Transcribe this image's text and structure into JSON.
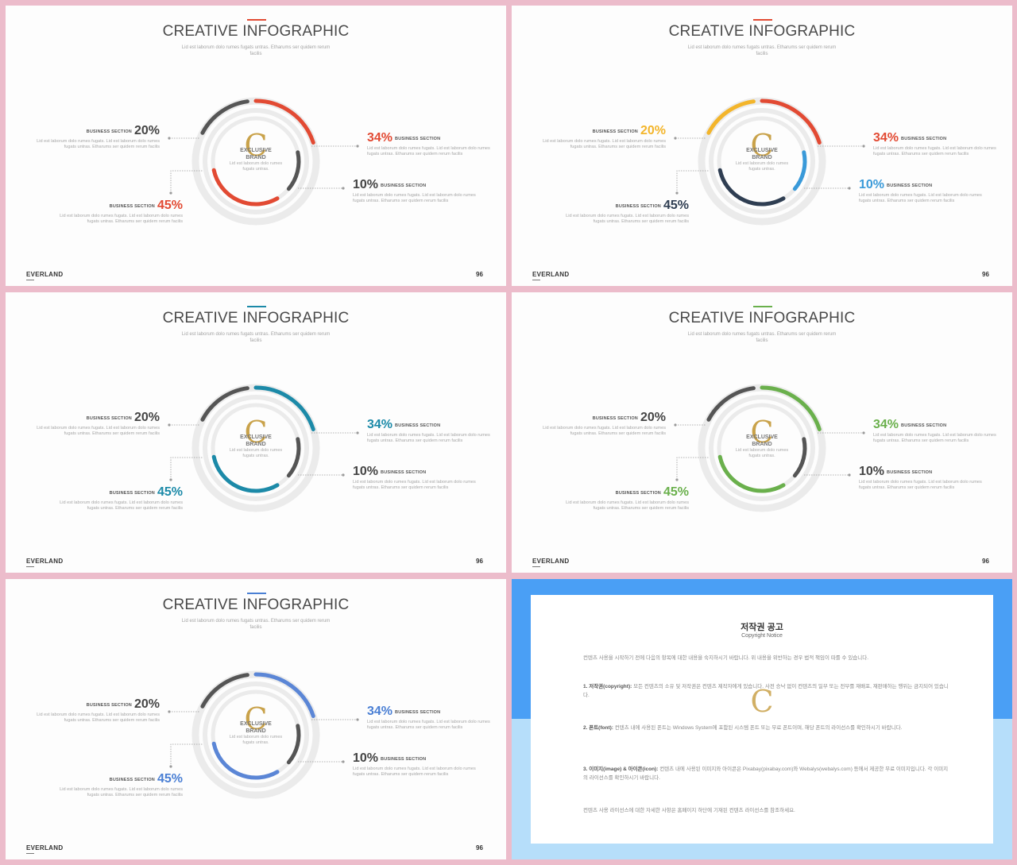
{
  "slide_common": {
    "title": "CREATIVE INFOGRAPHIC",
    "subtitle": "Lid est laborum dolo rumes fugats untras. Etharums ser quidem rerum facilis",
    "brand": "EVERLAND",
    "page_number": "96",
    "center_text": "Lid est laborum dolo rumes fugats untras.",
    "logo_letter": "C",
    "logo_text": "EXCLUSIVE BRAND",
    "section_label": "BUSINESS SECTION",
    "description": "Lid est laborum dolo rumes fugats. Lid est laborum dolo rumes fugats untras. Etharums ser quidem rerum facilis",
    "segments": [
      {
        "percent": "20%",
        "position": "left-top"
      },
      {
        "percent": "34%",
        "position": "right-top"
      },
      {
        "percent": "45%",
        "position": "left-bottom"
      },
      {
        "percent": "10%",
        "position": "right-bottom"
      }
    ]
  },
  "slides": [
    {
      "accent": "#e24a33",
      "outer_top_left": "#555555",
      "outer_top_right": "#e24a33",
      "inner_right": "#555555",
      "inner_bottom": "#e24a33",
      "pct_colors": {
        "20%": "#444444",
        "34%": "#e24a33",
        "45%": "#e24a33",
        "10%": "#444444"
      }
    },
    {
      "accent": "#e24a33",
      "outer_top_left": "#f3b52b",
      "outer_top_right": "#e24a33",
      "inner_right": "#3a9ad9",
      "inner_bottom": "#2f3e52",
      "pct_colors": {
        "20%": "#f3b52b",
        "34%": "#e24a33",
        "45%": "#2f3e52",
        "10%": "#3a9ad9"
      }
    },
    {
      "accent": "#1c8aa8",
      "outer_top_left": "#555555",
      "outer_top_right": "#1c8aa8",
      "inner_right": "#555555",
      "inner_bottom": "#1c8aa8",
      "pct_colors": {
        "20%": "#444444",
        "34%": "#1c8aa8",
        "45%": "#1c8aa8",
        "10%": "#444444"
      }
    },
    {
      "accent": "#6ab04c",
      "outer_top_left": "#555555",
      "outer_top_right": "#6ab04c",
      "inner_right": "#555555",
      "inner_bottom": "#6ab04c",
      "pct_colors": {
        "20%": "#444444",
        "34%": "#6ab04c",
        "45%": "#6ab04c",
        "10%": "#444444"
      }
    },
    {
      "accent": "#4a7fd4",
      "outer_top_left": "#555555",
      "outer_top_right": "#5b86d6",
      "inner_right": "#555555",
      "inner_bottom": "#5b86d6",
      "pct_colors": {
        "20%": "#444444",
        "34%": "#4a7fd4",
        "45%": "#4a7fd4",
        "10%": "#444444"
      }
    }
  ],
  "notice": {
    "title": "저작권 공고",
    "subtitle": "Copyright Notice",
    "intro": "컨텐츠 사용을 시작하기 전에 다음의 항목에 대한 내용을 숙지하시기 바랍니다. 위 내용을 위반하는 경우 법적 책임이 따를 수 있습니다.",
    "p1_head": "1. 저작권(copyright):",
    "p1_body": "모든 컨텐츠의 소유 및 저작권은 컨텐츠 제작자에게 있습니다. 사전 승낙 없이 컨텐츠의 일부 또는 전부를 재배포, 재판매하는 행위는 금지되어 있습니다.",
    "p2_head": "2. 폰트(font):",
    "p2_body": "컨텐츠 내에 사용된 폰트는 Windows System에 포함된 시스템 폰트 또는 무료 폰트이며, 해당 폰트의 라이선스를 확인하시기 바랍니다.",
    "p3_head": "3. 이미지(image) & 아이콘(icon):",
    "p3_body": "컨텐츠 내에 사용된 이미지와 아이콘은 Pixabay(pixabay.com)와 Webalys(webalys.com) 등에서 제공한 무료 이미지입니다. 각 이미지의 라이선스를 확인하시기 바랍니다.",
    "outro": "컨텐츠 사용 라이선스에 대한 자세한 사항은 홈페이지 하단에 기재된 컨텐츠 라이선스를 참조하세요."
  }
}
